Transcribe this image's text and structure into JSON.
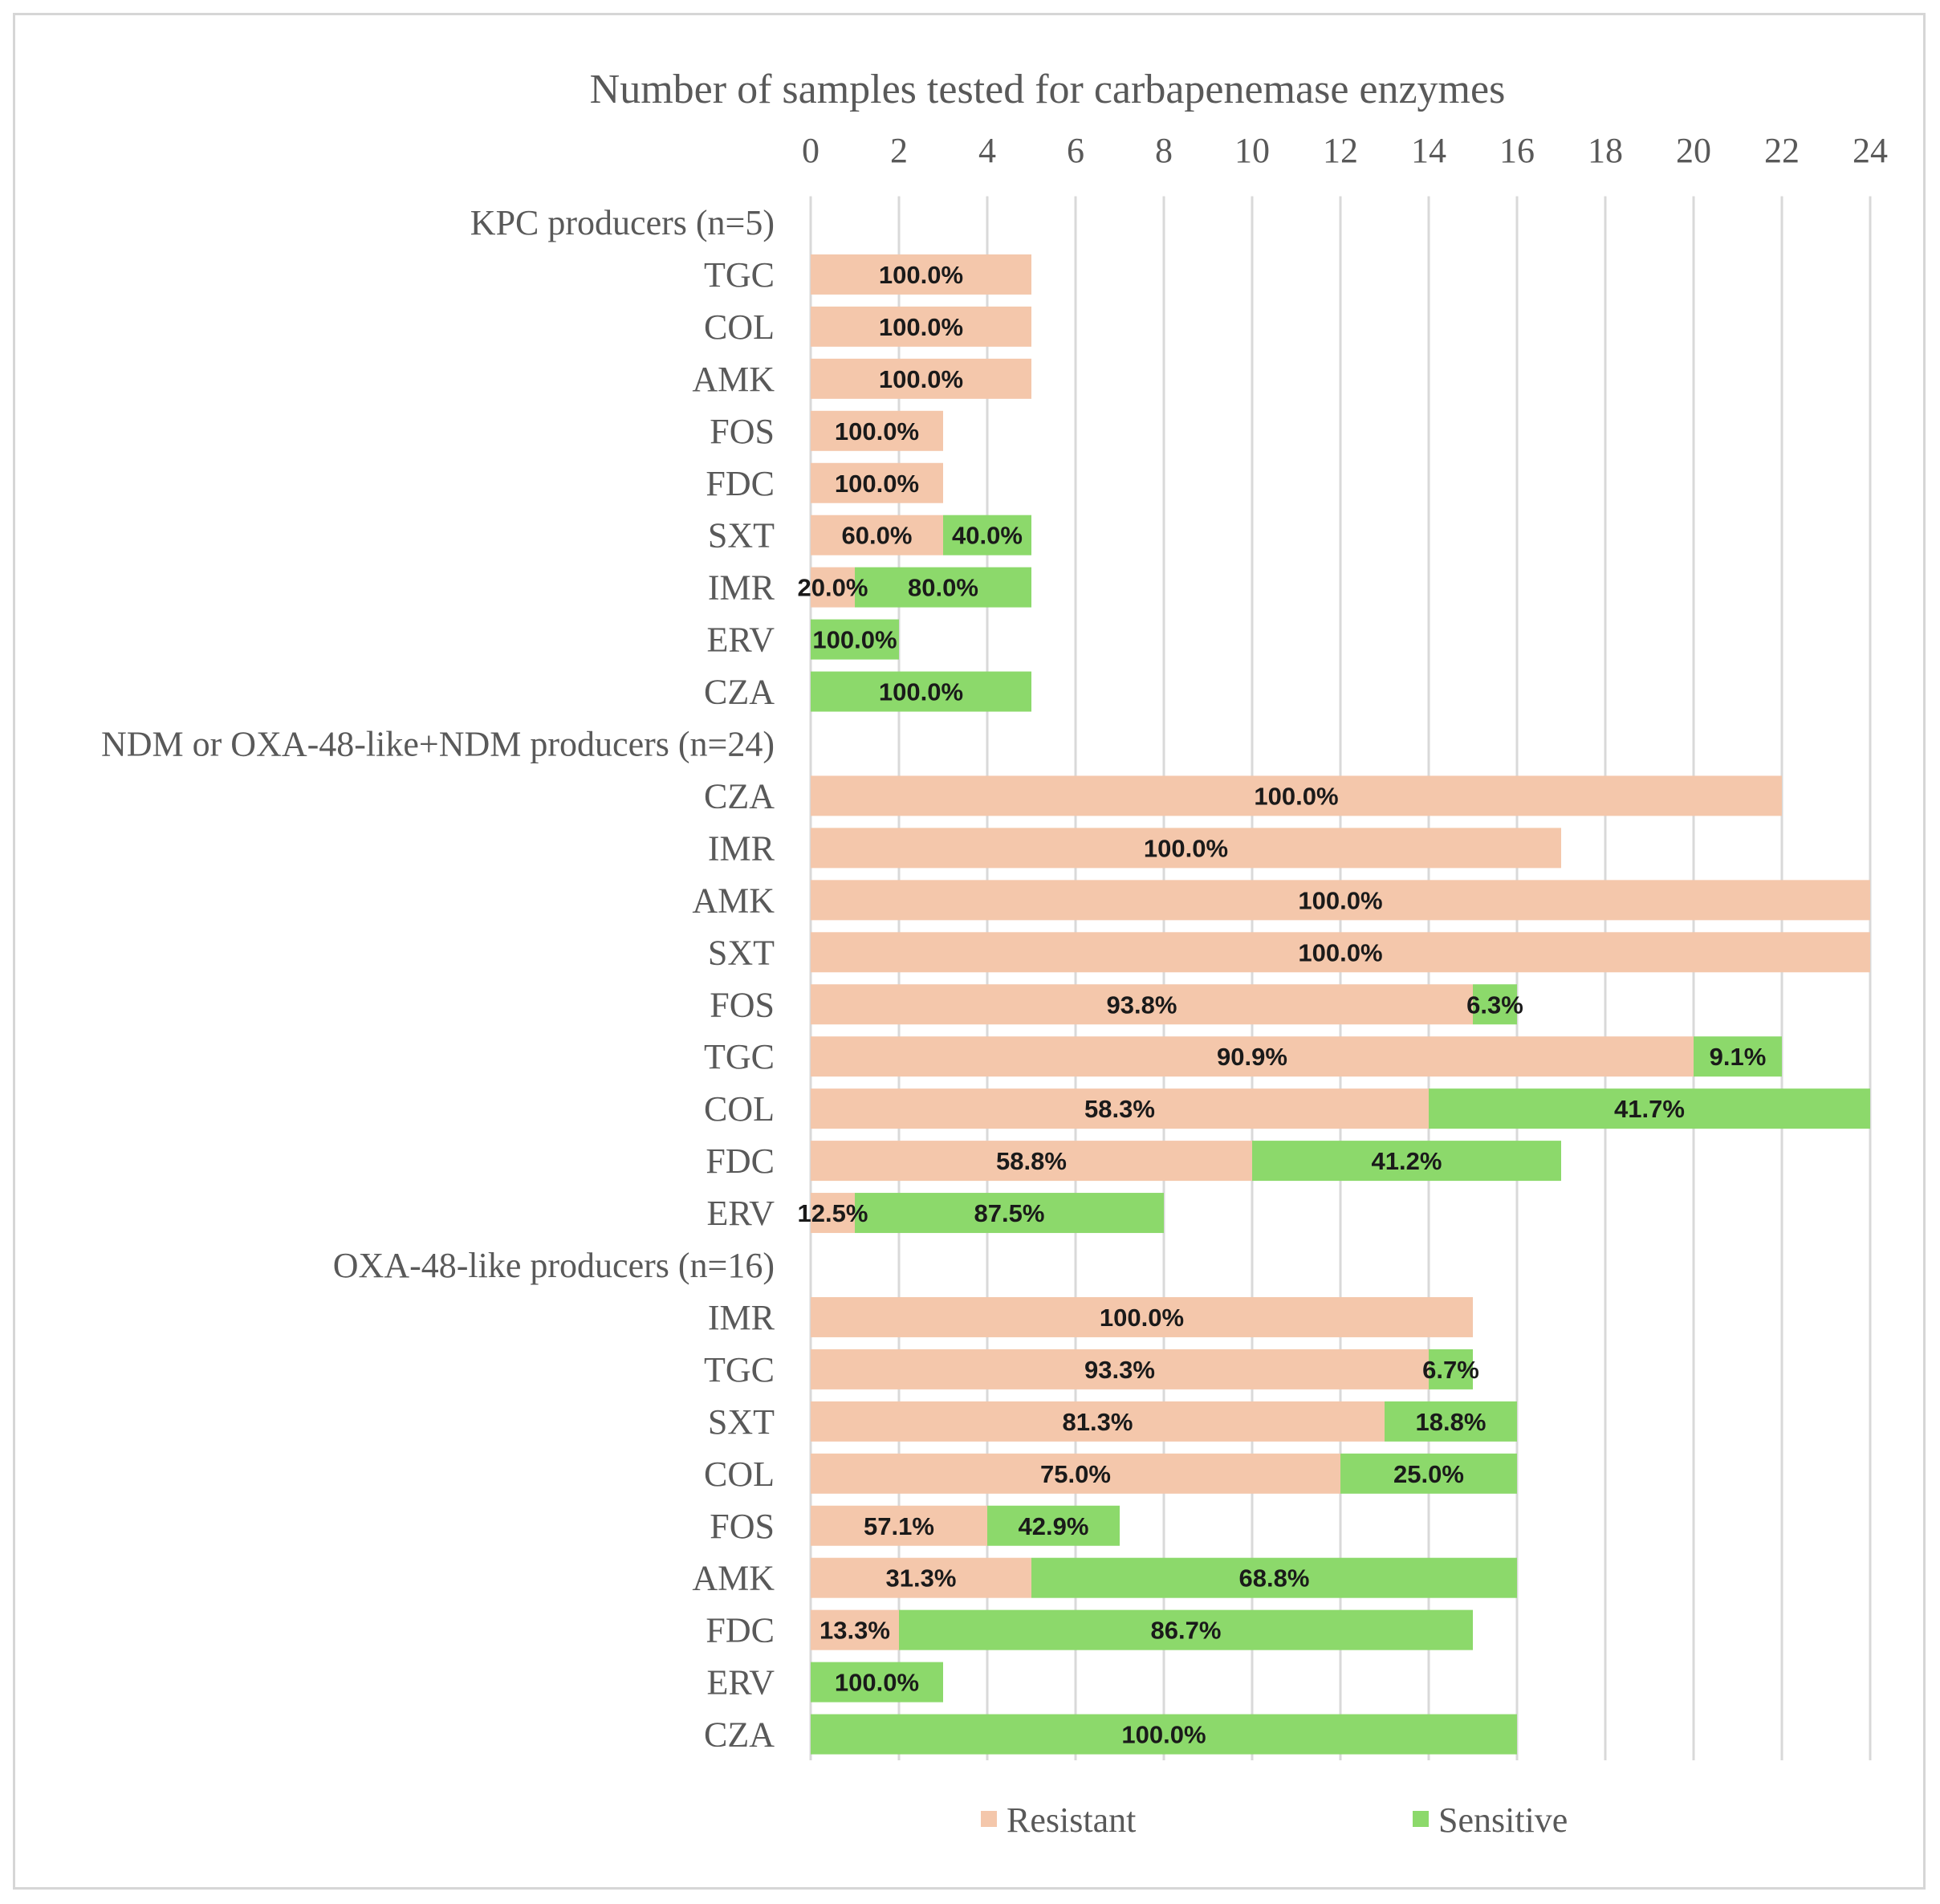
{
  "chart_data": {
    "type": "bar",
    "orientation": "horizontal",
    "stacked": true,
    "title": "Number of samples tested for carbapenemase enzymes",
    "xlim": [
      0,
      24
    ],
    "xticks": [
      0,
      2,
      4,
      6,
      8,
      10,
      12,
      14,
      16,
      18,
      20,
      22,
      24
    ],
    "grid": true,
    "legend_position": "bottom",
    "colors": {
      "Resistant": "#f4c7ab",
      "Sensitive": "#8cd96b"
    },
    "series_names": [
      "Resistant",
      "Sensitive"
    ],
    "groups": [
      {
        "label": "KPC producers (n=5)",
        "rows": [
          {
            "category": "TGC",
            "resistant": 5,
            "sensitive": 0,
            "resistant_label": "100.0%",
            "sensitive_label": ""
          },
          {
            "category": "COL",
            "resistant": 5,
            "sensitive": 0,
            "resistant_label": "100.0%",
            "sensitive_label": ""
          },
          {
            "category": "AMK",
            "resistant": 5,
            "sensitive": 0,
            "resistant_label": "100.0%",
            "sensitive_label": ""
          },
          {
            "category": "FOS",
            "resistant": 3,
            "sensitive": 0,
            "resistant_label": "100.0%",
            "sensitive_label": ""
          },
          {
            "category": "FDC",
            "resistant": 3,
            "sensitive": 0,
            "resistant_label": "100.0%",
            "sensitive_label": ""
          },
          {
            "category": "SXT",
            "resistant": 3,
            "sensitive": 2,
            "resistant_label": "60.0%",
            "sensitive_label": "40.0%"
          },
          {
            "category": "IMR",
            "resistant": 1,
            "sensitive": 4,
            "resistant_label": "20.0%",
            "sensitive_label": "80.0%"
          },
          {
            "category": "ERV",
            "resistant": 0,
            "sensitive": 2,
            "resistant_label": "",
            "sensitive_label": "100.0%"
          },
          {
            "category": "CZA",
            "resistant": 0,
            "sensitive": 5,
            "resistant_label": "",
            "sensitive_label": "100.0%"
          }
        ]
      },
      {
        "label": "NDM or OXA-48-like+NDM producers (n=24)",
        "rows": [
          {
            "category": "CZA",
            "resistant": 22,
            "sensitive": 0,
            "resistant_label": "100.0%",
            "sensitive_label": ""
          },
          {
            "category": "IMR",
            "resistant": 17,
            "sensitive": 0,
            "resistant_label": "100.0%",
            "sensitive_label": ""
          },
          {
            "category": "AMK",
            "resistant": 24,
            "sensitive": 0,
            "resistant_label": "100.0%",
            "sensitive_label": ""
          },
          {
            "category": "SXT",
            "resistant": 24,
            "sensitive": 0,
            "resistant_label": "100.0%",
            "sensitive_label": ""
          },
          {
            "category": "FOS",
            "resistant": 15,
            "sensitive": 1,
            "resistant_label": "93.8%",
            "sensitive_label": "6.3%"
          },
          {
            "category": "TGC",
            "resistant": 20,
            "sensitive": 2,
            "resistant_label": "90.9%",
            "sensitive_label": "9.1%"
          },
          {
            "category": "COL",
            "resistant": 14,
            "sensitive": 10,
            "resistant_label": "58.3%",
            "sensitive_label": "41.7%"
          },
          {
            "category": "FDC",
            "resistant": 10,
            "sensitive": 7,
            "resistant_label": "58.8%",
            "sensitive_label": "41.2%"
          },
          {
            "category": "ERV",
            "resistant": 1,
            "sensitive": 7,
            "resistant_label": "12.5%",
            "sensitive_label": "87.5%"
          }
        ]
      },
      {
        "label": "OXA-48-like producers (n=16)",
        "rows": [
          {
            "category": "IMR",
            "resistant": 15,
            "sensitive": 0,
            "resistant_label": "100.0%",
            "sensitive_label": ""
          },
          {
            "category": "TGC",
            "resistant": 14,
            "sensitive": 1,
            "resistant_label": "93.3%",
            "sensitive_label": "6.7%"
          },
          {
            "category": "SXT",
            "resistant": 13,
            "sensitive": 3,
            "resistant_label": "81.3%",
            "sensitive_label": "18.8%"
          },
          {
            "category": "COL",
            "resistant": 12,
            "sensitive": 4,
            "resistant_label": "75.0%",
            "sensitive_label": "25.0%"
          },
          {
            "category": "FOS",
            "resistant": 4,
            "sensitive": 3,
            "resistant_label": "57.1%",
            "sensitive_label": "42.9%"
          },
          {
            "category": "AMK",
            "resistant": 5,
            "sensitive": 11,
            "resistant_label": "31.3%",
            "sensitive_label": "68.8%"
          },
          {
            "category": "FDC",
            "resistant": 2,
            "sensitive": 13,
            "resistant_label": "13.3%",
            "sensitive_label": "86.7%"
          },
          {
            "category": "ERV",
            "resistant": 0,
            "sensitive": 3,
            "resistant_label": "",
            "sensitive_label": "100.0%"
          },
          {
            "category": "CZA",
            "resistant": 0,
            "sensitive": 16,
            "resistant_label": "",
            "sensitive_label": "100.0%"
          }
        ]
      }
    ]
  }
}
